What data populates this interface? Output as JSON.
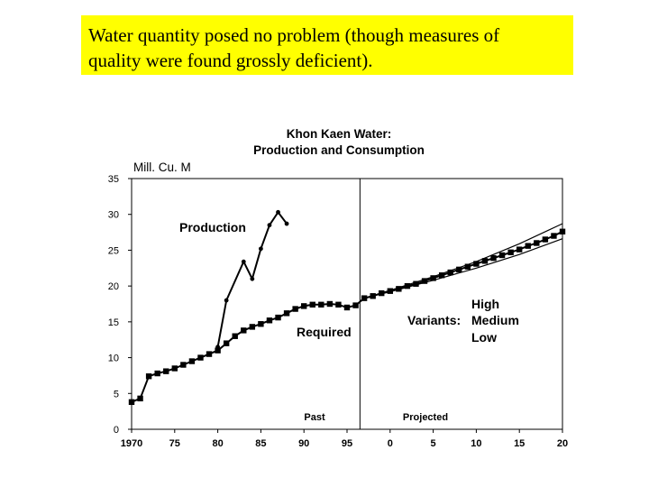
{
  "caption": {
    "line1": "Water quantity posed no problem (though measures of",
    "line2": "quality were found grossly deficient)."
  },
  "chart_data": {
    "type": "line",
    "title_line1": "Khon Kaen Water:",
    "title_line2": "Production and Consumption",
    "ylabel": "Mill. Cu. M",
    "ylim": [
      0,
      35
    ],
    "xlim": [
      1970,
      2020
    ],
    "yticks": [
      0,
      5,
      10,
      15,
      20,
      25,
      30,
      35
    ],
    "xticks": [
      {
        "x": 1970,
        "label": "1970"
      },
      {
        "x": 1975,
        "label": "75"
      },
      {
        "x": 1980,
        "label": "80"
      },
      {
        "x": 1985,
        "label": "85"
      },
      {
        "x": 1990,
        "label": "90"
      },
      {
        "x": 1995,
        "label": "95"
      },
      {
        "x": 2000,
        "label": "0"
      },
      {
        "x": 2005,
        "label": "5"
      },
      {
        "x": 2010,
        "label": "10"
      },
      {
        "x": 2015,
        "label": "15"
      },
      {
        "x": 2020,
        "label": "20"
      }
    ],
    "divider_x": 1996.5,
    "period_labels": {
      "past": "Past",
      "projected": "Projected"
    },
    "series": [
      {
        "name": "Production",
        "marker": "dot",
        "points": [
          [
            1980,
            11.5
          ],
          [
            1981,
            18
          ],
          [
            1983,
            23.4
          ],
          [
            1984,
            21
          ],
          [
            1985,
            25.2
          ],
          [
            1986,
            28.5
          ],
          [
            1987,
            30.3
          ],
          [
            1988,
            28.7
          ]
        ]
      },
      {
        "name": "Required",
        "marker": "square",
        "points": [
          [
            1970,
            3.8
          ],
          [
            1971,
            4.3
          ],
          [
            1972,
            7.4
          ],
          [
            1973,
            7.8
          ],
          [
            1974,
            8.1
          ],
          [
            1975,
            8.5
          ],
          [
            1976,
            9
          ],
          [
            1977,
            9.5
          ],
          [
            1978,
            10
          ],
          [
            1979,
            10.5
          ],
          [
            1980,
            11
          ],
          [
            1981,
            12
          ],
          [
            1982,
            13
          ],
          [
            1983,
            13.8
          ],
          [
            1984,
            14.3
          ],
          [
            1985,
            14.7
          ],
          [
            1986,
            15.2
          ],
          [
            1987,
            15.6
          ],
          [
            1988,
            16.2
          ],
          [
            1989,
            16.8
          ],
          [
            1990,
            17.2
          ],
          [
            1991,
            17.4
          ],
          [
            1992,
            17.4
          ],
          [
            1993,
            17.5
          ],
          [
            1994,
            17.4
          ],
          [
            1995,
            17
          ],
          [
            1996,
            17.3
          ],
          [
            1997,
            18.3
          ],
          [
            1998,
            18.6
          ],
          [
            1999,
            19
          ],
          [
            2000,
            19.3
          ],
          [
            2001,
            19.6
          ],
          [
            2002,
            20
          ],
          [
            2003,
            20.3
          ],
          [
            2004,
            20.7
          ],
          [
            2005,
            21.1
          ],
          [
            2006,
            21.5
          ],
          [
            2007,
            21.9
          ],
          [
            2008,
            22.3
          ],
          [
            2009,
            22.7
          ],
          [
            2010,
            23.1
          ],
          [
            2011,
            23.5
          ],
          [
            2012,
            23.9
          ],
          [
            2013,
            24.3
          ],
          [
            2014,
            24.7
          ],
          [
            2015,
            25.1
          ],
          [
            2016,
            25.6
          ],
          [
            2017,
            26
          ],
          [
            2018,
            26.5
          ],
          [
            2019,
            27
          ],
          [
            2020,
            27.6
          ]
        ]
      },
      {
        "name": "High",
        "marker": "none",
        "points": [
          [
            1997,
            18.3
          ],
          [
            2000,
            19.4
          ],
          [
            2005,
            21.3
          ],
          [
            2010,
            23.4
          ],
          [
            2015,
            25.9
          ],
          [
            2020,
            28.7
          ]
        ]
      },
      {
        "name": "Low",
        "marker": "none",
        "points": [
          [
            1997,
            18.3
          ],
          [
            2000,
            19.2
          ],
          [
            2005,
            20.8
          ],
          [
            2010,
            22.5
          ],
          [
            2015,
            24.4
          ],
          [
            2020,
            26.6
          ]
        ]
      }
    ],
    "annotations": {
      "production": "Production",
      "required": "Required",
      "variants": "Variants:",
      "high": "High",
      "medium": "Medium",
      "low": "Low"
    }
  }
}
